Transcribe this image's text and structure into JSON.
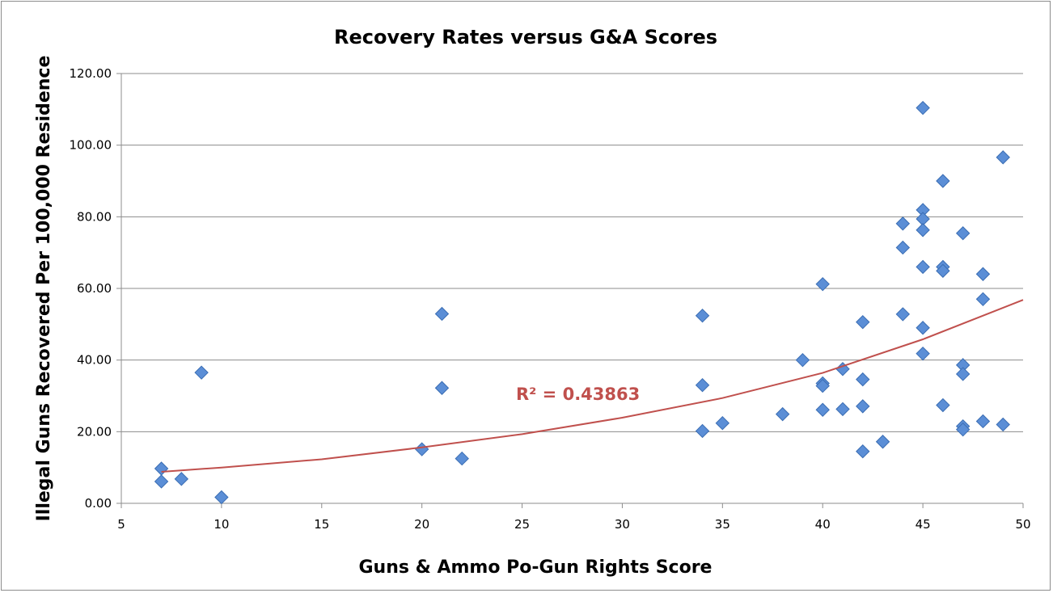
{
  "chart_data": {
    "type": "scatter",
    "title": "Recovery Rates versus G&A Scores",
    "xlabel": "Guns & Ammo Po-Gun Rights Score",
    "ylabel": "Illegal Guns Recovered Per 100,000 Residence",
    "xlim": [
      5,
      50
    ],
    "ylim": [
      0,
      120
    ],
    "x_ticks": [
      "5",
      "10",
      "15",
      "20",
      "25",
      "30",
      "35",
      "40",
      "45",
      "50"
    ],
    "y_ticks": [
      "0.00",
      "20.00",
      "40.00",
      "60.00",
      "80.00",
      "100.00",
      "120.00"
    ],
    "grid": "horizontal",
    "legend": "none",
    "marker": "diamond",
    "marker_color": "#5b8ed6",
    "trendline": {
      "type": "exponential",
      "color": "#c0504d",
      "label": "R² = 0.43863",
      "points": [
        [
          7,
          8.8
        ],
        [
          10,
          10.0
        ],
        [
          15,
          12.3
        ],
        [
          20,
          15.6
        ],
        [
          25,
          19.3
        ],
        [
          30,
          23.9
        ],
        [
          35,
          29.4
        ],
        [
          40,
          36.4
        ],
        [
          45,
          45.8
        ],
        [
          50,
          56.8
        ]
      ]
    },
    "series": [
      {
        "points": [
          [
            7,
            9.7
          ],
          [
            7,
            6.1
          ],
          [
            8,
            6.8
          ],
          [
            9,
            36.5
          ],
          [
            10,
            1.7
          ],
          [
            20,
            15.1
          ],
          [
            21,
            52.9
          ],
          [
            21,
            32.2
          ],
          [
            22,
            12.5
          ],
          [
            34,
            52.4
          ],
          [
            34,
            33.0
          ],
          [
            34,
            20.2
          ],
          [
            35,
            22.4
          ],
          [
            38,
            24.9
          ],
          [
            39,
            40.0
          ],
          [
            40,
            61.2
          ],
          [
            40,
            33.5
          ],
          [
            40,
            32.8
          ],
          [
            40,
            26.1
          ],
          [
            41,
            37.5
          ],
          [
            41,
            26.3
          ],
          [
            42,
            50.6
          ],
          [
            42,
            34.6
          ],
          [
            42,
            27.1
          ],
          [
            42,
            14.5
          ],
          [
            43,
            17.2
          ],
          [
            44,
            78.1
          ],
          [
            44,
            71.4
          ],
          [
            44,
            52.8
          ],
          [
            45,
            110.4
          ],
          [
            45,
            81.9
          ],
          [
            45,
            79.4
          ],
          [
            45,
            76.3
          ],
          [
            45,
            66.0
          ],
          [
            45,
            49.0
          ],
          [
            45,
            41.8
          ],
          [
            46,
            90.0
          ],
          [
            46,
            66.0
          ],
          [
            46,
            64.9
          ],
          [
            46,
            27.4
          ],
          [
            47,
            75.4
          ],
          [
            47,
            38.6
          ],
          [
            47,
            36.1
          ],
          [
            47,
            21.5
          ],
          [
            47,
            20.6
          ],
          [
            48,
            64.0
          ],
          [
            48,
            57.0
          ],
          [
            48,
            22.9
          ],
          [
            49,
            96.6
          ],
          [
            49,
            22.0
          ]
        ]
      }
    ]
  }
}
